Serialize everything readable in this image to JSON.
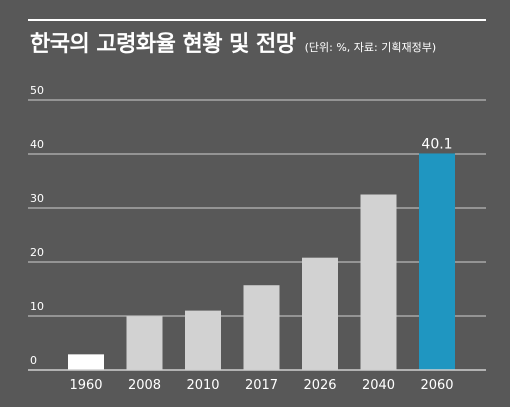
{
  "chart_data": {
    "type": "bar",
    "title": "한국의 고령화율 현황 및 전망",
    "subtitle": "(단위: %, 자료: 기획재정부)",
    "categories": [
      "1960",
      "2008",
      "2010",
      "2017",
      "2026",
      "2040",
      "2060"
    ],
    "values": [
      2.9,
      9.9,
      11.0,
      15.7,
      20.8,
      32.5,
      40.1
    ],
    "data_labels": [
      "",
      "",
      "",
      "",
      "",
      "",
      "40.1"
    ],
    "y_ticks": [
      "0",
      "10",
      "20",
      "30",
      "40",
      "50"
    ],
    "ylim": [
      0,
      50
    ],
    "grid": true,
    "legend": "none",
    "colors": {
      "background": "#585858",
      "bar_first": "#ffffff",
      "bar_default": "#d2d2d2",
      "bar_highlight": "#1f96c1",
      "grid": "#cfcfcf",
      "text": "#ffffff"
    }
  }
}
